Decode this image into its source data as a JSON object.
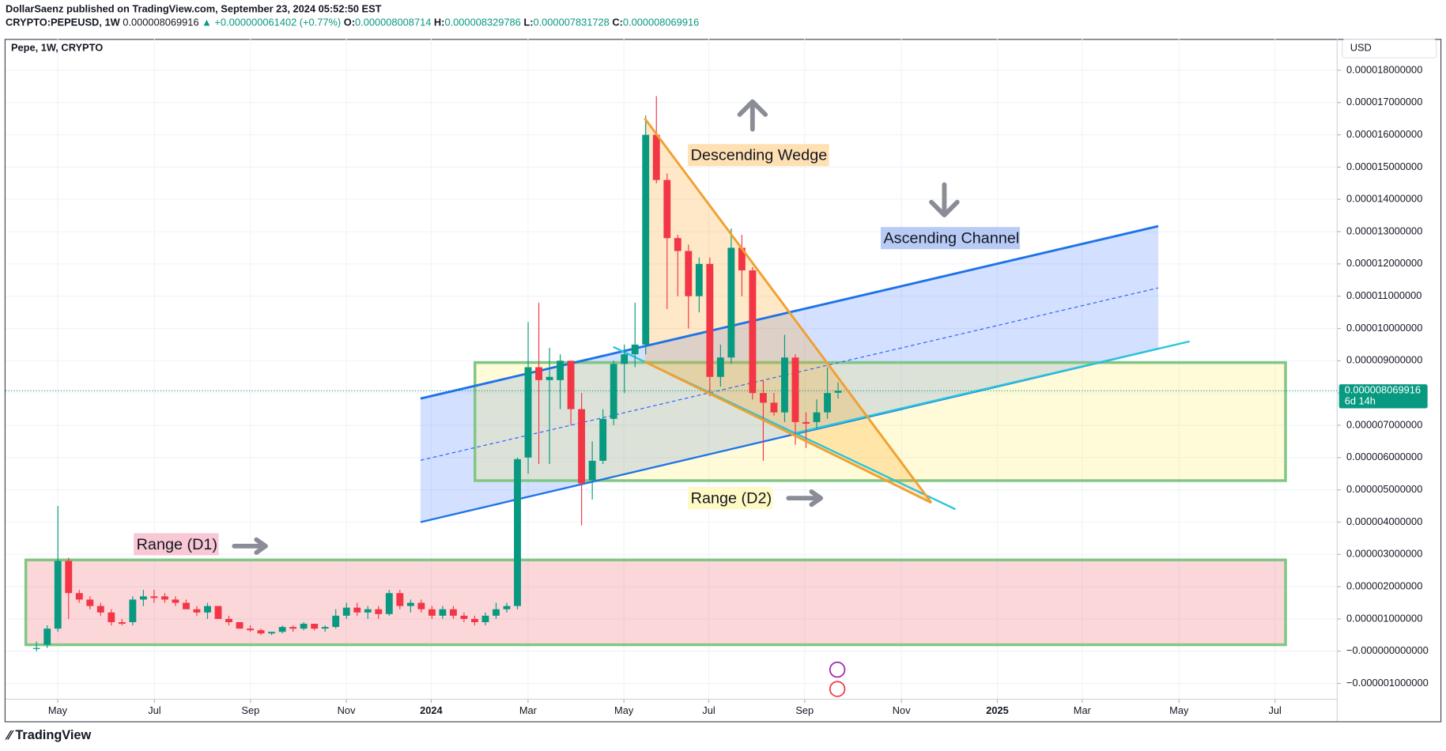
{
  "header": {
    "publisher": "DollarSaenz published on TradingView.com, September 23, 2024 05:52:50 EST",
    "symbol": "CRYPTO:PEPEUSD, 1W",
    "last": "0.000008069916",
    "change": "▲ +0.000000061402 (+0.77%)",
    "ohlc": [
      {
        "label": "O:",
        "value": "0.000008008714"
      },
      {
        "label": "H:",
        "value": "0.000008329786"
      },
      {
        "label": "L:",
        "value": "0.000007831728"
      },
      {
        "label": "C:",
        "value": "0.000008069916"
      }
    ]
  },
  "chart_data": {
    "type": "candlestick",
    "title": "Pepe, 1W, CRYPTO",
    "currency": "USD",
    "up_color": "#089981",
    "down_color": "#f23645",
    "price_label": "0.000008069916",
    "price_value": 8.069916e-06,
    "countdown": "6d 14h",
    "annotations": [
      "Descending Wedge",
      "Ascending Channel",
      "Range (D2)",
      "Range (D1)"
    ],
    "xlim": [
      -2.9,
      121.7
    ],
    "xticks": [
      {
        "value": 1.98,
        "label": "May"
      },
      {
        "value": 11.04,
        "label": "Jul"
      },
      {
        "value": 20.02,
        "label": "Sep"
      },
      {
        "value": 28.99,
        "label": "Nov"
      },
      {
        "value": 36.93,
        "label": "2024"
      },
      {
        "value": 45.99,
        "label": "Mar"
      },
      {
        "value": 54.96,
        "label": "May"
      },
      {
        "value": 62.9,
        "label": "Jul"
      },
      {
        "value": 71.87,
        "label": "Sep"
      },
      {
        "value": 80.93,
        "label": "Nov"
      },
      {
        "value": 89.9,
        "label": "2025"
      },
      {
        "value": 97.84,
        "label": "Mar"
      },
      {
        "value": 106.9,
        "label": "May"
      },
      {
        "value": 115.88,
        "label": "Jul"
      }
    ],
    "ylim": [
      -1.4857e-06,
      1.8971e-05
    ],
    "yticks": [
      {
        "value": 1.8e-05,
        "label": "0.000018000000"
      },
      {
        "value": 1.7e-05,
        "label": "0.000017000000"
      },
      {
        "value": 1.6e-05,
        "label": "0.000016000000"
      },
      {
        "value": 1.5e-05,
        "label": "0.000015000000"
      },
      {
        "value": 1.4e-05,
        "label": "0.000014000000"
      },
      {
        "value": 1.3e-05,
        "label": "0.000013000000"
      },
      {
        "value": 1.2e-05,
        "label": "0.000012000000"
      },
      {
        "value": 1.1e-05,
        "label": "0.000011000000"
      },
      {
        "value": 1e-05,
        "label": "0.000010000000"
      },
      {
        "value": 9e-06,
        "label": "0.000009000000"
      },
      {
        "value": 8e-06,
        "label": "0.000008000000"
      },
      {
        "value": 7e-06,
        "label": "0.000007000000"
      },
      {
        "value": 6e-06,
        "label": "0.000006000000"
      },
      {
        "value": 5e-06,
        "label": "0.000005000000"
      },
      {
        "value": 4e-06,
        "label": "0.000004000000"
      },
      {
        "value": 3e-06,
        "label": "0.000003000000"
      },
      {
        "value": 2e-06,
        "label": "0.000002000000"
      },
      {
        "value": 1e-06,
        "label": "0.000001000000"
      },
      {
        "value": 0,
        "label": "−0.000000000000"
      },
      {
        "value": -1e-06,
        "label": "−0.000001000000"
      }
    ],
    "candles": [
      {
        "open": 1e-07,
        "high": 3e-07,
        "low": 0,
        "close": 1e-07
      },
      {
        "open": 2e-07,
        "high": 8e-07,
        "low": 1e-07,
        "close": 7e-07
      },
      {
        "open": 7e-07,
        "high": 4.5e-06,
        "low": 6e-07,
        "close": 2.8e-06
      },
      {
        "open": 2.8e-06,
        "high": 2.9e-06,
        "low": 1e-06,
        "close": 1.8e-06
      },
      {
        "open": 1.8e-06,
        "high": 1.9e-06,
        "low": 1.5e-06,
        "close": 1.6e-06
      },
      {
        "open": 1.6e-06,
        "high": 1.7e-06,
        "low": 1.3e-06,
        "close": 1.4e-06
      },
      {
        "open": 1.4e-06,
        "high": 1.5e-06,
        "low": 1.1e-06,
        "close": 1.2e-06
      },
      {
        "open": 1.2e-06,
        "high": 1.3e-06,
        "low": 8e-07,
        "close": 9e-07
      },
      {
        "open": 9e-07,
        "high": 1e-06,
        "low": 8e-07,
        "close": 8.5e-07
      },
      {
        "open": 9e-07,
        "high": 1.7e-06,
        "low": 8e-07,
        "close": 1.6e-06
      },
      {
        "open": 1.6e-06,
        "high": 1.9e-06,
        "low": 1.4e-06,
        "close": 1.7e-06
      },
      {
        "open": 1.7e-06,
        "high": 1.9e-06,
        "low": 1.5e-06,
        "close": 1.65e-06
      },
      {
        "open": 1.7e-06,
        "high": 1.8e-06,
        "low": 1.5e-06,
        "close": 1.6e-06
      },
      {
        "open": 1.6e-06,
        "high": 1.7e-06,
        "low": 1.4e-06,
        "close": 1.5e-06
      },
      {
        "open": 1.5e-06,
        "high": 1.6e-06,
        "low": 1.3e-06,
        "close": 1.3e-06
      },
      {
        "open": 1.3e-06,
        "high": 1.4e-06,
        "low": 1.1e-06,
        "close": 1.2e-06
      },
      {
        "open": 1.2e-06,
        "high": 1.5e-06,
        "low": 1e-06,
        "close": 1.4e-06
      },
      {
        "open": 1.4e-06,
        "high": 1.4e-06,
        "low": 1e-06,
        "close": 1e-06
      },
      {
        "open": 1e-06,
        "high": 1.1e-06,
        "low": 8e-07,
        "close": 9e-07
      },
      {
        "open": 9e-07,
        "high": 9e-07,
        "low": 7e-07,
        "close": 7e-07
      },
      {
        "open": 7e-07,
        "high": 8e-07,
        "low": 6e-07,
        "close": 6.5e-07
      },
      {
        "open": 6.5e-07,
        "high": 7e-07,
        "low": 5e-07,
        "close": 5.5e-07
      },
      {
        "open": 5.5e-07,
        "high": 6e-07,
        "low": 5e-07,
        "close": 6e-07
      },
      {
        "open": 6e-07,
        "high": 8e-07,
        "low": 5.5e-07,
        "close": 7.5e-07
      },
      {
        "open": 7.5e-07,
        "high": 8e-07,
        "low": 6e-07,
        "close": 7e-07
      },
      {
        "open": 7e-07,
        "high": 9e-07,
        "low": 6.5e-07,
        "close": 8.5e-07
      },
      {
        "open": 8.5e-07,
        "high": 8.5e-07,
        "low": 6.5e-07,
        "close": 7e-07
      },
      {
        "open": 7e-07,
        "high": 8e-07,
        "low": 6e-07,
        "close": 7.5e-07
      },
      {
        "open": 7.5e-07,
        "high": 1.3e-06,
        "low": 7e-07,
        "close": 1.1e-06
      },
      {
        "open": 1.1e-06,
        "high": 1.5e-06,
        "low": 1e-06,
        "close": 1.35e-06
      },
      {
        "open": 1.35e-06,
        "high": 1.5e-06,
        "low": 1.1e-06,
        "close": 1.2e-06
      },
      {
        "open": 1.2e-06,
        "high": 1.4e-06,
        "low": 1e-06,
        "close": 1.3e-06
      },
      {
        "open": 1.3e-06,
        "high": 1.4e-06,
        "low": 1e-06,
        "close": 1.15e-06
      },
      {
        "open": 1.15e-06,
        "high": 1.9e-06,
        "low": 1.1e-06,
        "close": 1.8e-06
      },
      {
        "open": 1.8e-06,
        "high": 1.9e-06,
        "low": 1.3e-06,
        "close": 1.4e-06
      },
      {
        "open": 1.4e-06,
        "high": 1.6e-06,
        "low": 1.2e-06,
        "close": 1.5e-06
      },
      {
        "open": 1.5e-06,
        "high": 1.6e-06,
        "low": 1.2e-06,
        "close": 1.3e-06
      },
      {
        "open": 1.3e-06,
        "high": 1.4e-06,
        "low": 1e-06,
        "close": 1.1e-06
      },
      {
        "open": 1.1e-06,
        "high": 1.4e-06,
        "low": 1e-06,
        "close": 1.3e-06
      },
      {
        "open": 1.3e-06,
        "high": 1.4e-06,
        "low": 1e-06,
        "close": 1.1e-06
      },
      {
        "open": 1.1e-06,
        "high": 1.2e-06,
        "low": 9e-07,
        "close": 1e-06
      },
      {
        "open": 1e-06,
        "high": 1.1e-06,
        "low": 8e-07,
        "close": 9e-07
      },
      {
        "open": 9e-07,
        "high": 1.2e-06,
        "low": 8e-07,
        "close": 1.1e-06
      },
      {
        "open": 1.1e-06,
        "high": 1.5e-06,
        "low": 1e-06,
        "close": 1.3e-06
      },
      {
        "open": 1.3e-06,
        "high": 1.5e-06,
        "low": 1.2e-06,
        "close": 1.4e-06
      },
      {
        "open": 1.4e-06,
        "high": 6e-06,
        "low": 1.3e-06,
        "close": 5.95e-06
      },
      {
        "open": 6e-06,
        "high": 1.02e-05,
        "low": 5.5e-06,
        "close": 8.8e-06
      },
      {
        "open": 8.8e-06,
        "high": 1.08e-05,
        "low": 5.8e-06,
        "close": 8.4e-06
      },
      {
        "open": 8.4e-06,
        "high": 9.4e-06,
        "low": 5.8e-06,
        "close": 8.5e-06
      },
      {
        "open": 8.4e-06,
        "high": 9.2e-06,
        "low": 7.5e-06,
        "close": 9e-06
      },
      {
        "open": 9e-06,
        "high": 9e-06,
        "low": 7e-06,
        "close": 7.5e-06
      },
      {
        "open": 7.5e-06,
        "high": 8e-06,
        "low": 3.9e-06,
        "close": 5.2e-06
      },
      {
        "open": 5.3e-06,
        "high": 6.5e-06,
        "low": 4.7e-06,
        "close": 5.9e-06
      },
      {
        "open": 5.9e-06,
        "high": 7.5e-06,
        "low": 5.8e-06,
        "close": 7.2e-06
      },
      {
        "open": 7.2e-06,
        "high": 9e-06,
        "low": 7e-06,
        "close": 8.9e-06
      },
      {
        "open": 8.9e-06,
        "high": 9.5e-06,
        "low": 8e-06,
        "close": 9.2e-06
      },
      {
        "open": 9.2e-06,
        "high": 1.08e-05,
        "low": 8.8e-06,
        "close": 9.5e-06
      },
      {
        "open": 9.5e-06,
        "high": 1.66e-05,
        "low": 9.2e-06,
        "close": 1.6e-05
      },
      {
        "open": 1.6e-05,
        "high": 1.72e-05,
        "low": 1.45e-05,
        "close": 1.46e-05
      },
      {
        "open": 1.46e-05,
        "high": 1.48e-05,
        "low": 1.06e-05,
        "close": 1.28e-05
      },
      {
        "open": 1.28e-05,
        "high": 1.29e-05,
        "low": 1.1e-05,
        "close": 1.24e-05
      },
      {
        "open": 1.24e-05,
        "high": 1.26e-05,
        "low": 1e-05,
        "close": 1.1e-05
      },
      {
        "open": 1.1e-05,
        "high": 1.22e-05,
        "low": 1.05e-05,
        "close": 1.2e-05
      },
      {
        "open": 1.2e-05,
        "high": 1.22e-05,
        "low": 7.9e-06,
        "close": 8.5e-06
      },
      {
        "open": 8.5e-06,
        "high": 9.5e-06,
        "low": 8.2e-06,
        "close": 9.1e-06
      },
      {
        "open": 9.1e-06,
        "high": 1.31e-05,
        "low": 8.9e-06,
        "close": 1.25e-05
      },
      {
        "open": 1.25e-05,
        "high": 1.29e-05,
        "low": 1.1e-05,
        "close": 1.18e-05
      },
      {
        "open": 1.18e-05,
        "high": 1.19e-05,
        "low": 7.8e-06,
        "close": 8e-06
      },
      {
        "open": 8e-06,
        "high": 8.4e-06,
        "low": 5.9e-06,
        "close": 7.7e-06
      },
      {
        "open": 7.7e-06,
        "high": 8e-06,
        "low": 7.3e-06,
        "close": 7.4e-06
      },
      {
        "open": 7.4e-06,
        "high": 9.8e-06,
        "low": 7.1e-06,
        "close": 9.1e-06
      },
      {
        "open": 9.1e-06,
        "high": 9.2e-06,
        "low": 6.4e-06,
        "close": 7.1e-06
      },
      {
        "open": 7.1e-06,
        "high": 7.4e-06,
        "low": 6.3e-06,
        "close": 7.05e-06
      },
      {
        "open": 7.1e-06,
        "high": 7.8e-06,
        "low": 6.9e-06,
        "close": 7.4e-06
      },
      {
        "open": 7.4e-06,
        "high": 8.8e-06,
        "low": 7.2e-06,
        "close": 8e-06
      },
      {
        "open": 8.008714e-06,
        "high": 8.329786e-06,
        "low": 7.831728e-06,
        "close": 8.069916e-06
      }
    ]
  },
  "footer": {
    "brand": "TradingView"
  }
}
